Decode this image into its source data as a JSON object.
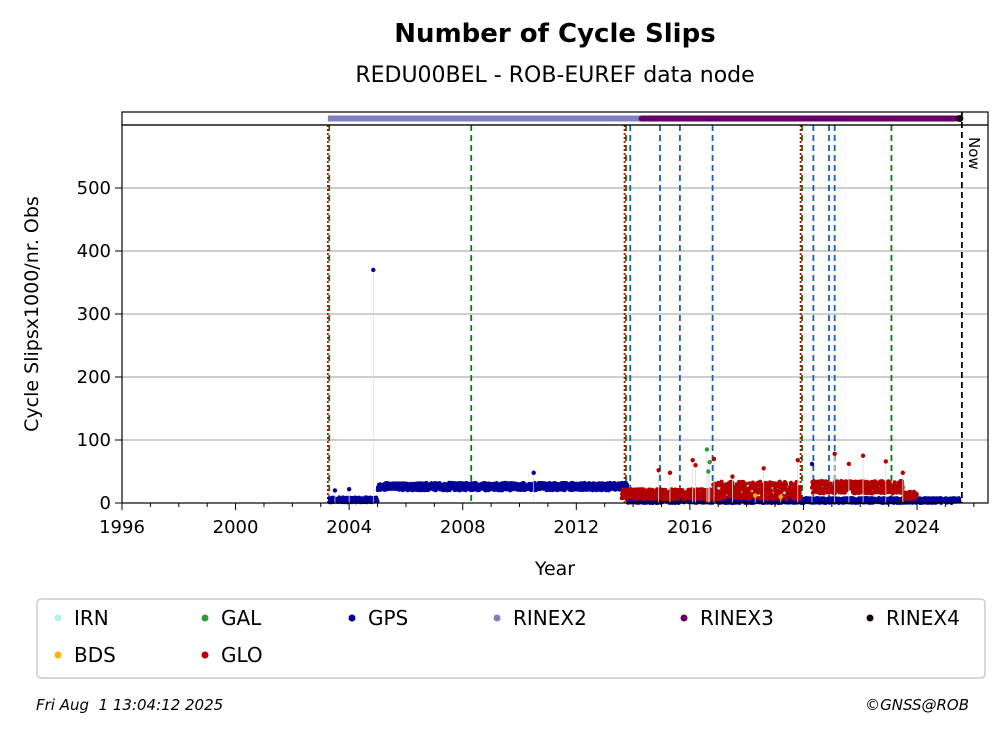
{
  "chart_data": {
    "type": "scatter",
    "title": "Number of Cycle Slips",
    "subtitle": "REDU00BEL - ROB-EUREF data node",
    "xlabel": "Year",
    "ylabel": "Cycle Slipsx1000/nr. Obs",
    "xlim": [
      1996,
      2026.5
    ],
    "ylim": [
      0,
      600
    ],
    "x_ticks": [
      1996,
      2000,
      2004,
      2008,
      2012,
      2016,
      2020,
      2024
    ],
    "y_ticks": [
      0,
      100,
      200,
      300,
      400,
      500
    ],
    "grid": "horizontal",
    "now_label": "Now",
    "now_x": 2025.58,
    "rinex_bars": [
      {
        "name": "RINEX2",
        "from": 2003.25,
        "to": 2014.3,
        "color": "#8080c0"
      },
      {
        "name": "RINEX3",
        "from": 2014.3,
        "to": 2025.5,
        "color": "#660066"
      },
      {
        "name": "RINEX4",
        "from": 2025.5,
        "to": 2025.58,
        "color": "#1a0010"
      }
    ],
    "event_lines_red": [
      2003.25,
      2013.7,
      2019.9
    ],
    "event_lines_green": [
      2003.3,
      2008.3,
      2013.75,
      2019.95,
      2023.1
    ],
    "event_lines_blue": [
      2013.9,
      2014.95,
      2015.65,
      2016.8,
      2020.35,
      2020.9,
      2021.1
    ],
    "series": [
      {
        "name": "GPS",
        "color": "#000099",
        "segments": [
          {
            "from": 2003.3,
            "to": 2005.0,
            "base": 5,
            "spread": 4
          },
          {
            "from": 2005.0,
            "to": 2013.8,
            "base": 26,
            "spread": 6
          },
          {
            "from": 2013.8,
            "to": 2025.5,
            "base": 4,
            "spread": 4
          }
        ],
        "outliers": [
          [
            2004.85,
            370
          ],
          [
            2010.5,
            48
          ],
          [
            2020.3,
            62
          ],
          [
            2003.5,
            20
          ],
          [
            2004.0,
            22
          ]
        ]
      },
      {
        "name": "GLO",
        "color": "#b30000",
        "segments": [
          {
            "from": 2013.6,
            "to": 2016.8,
            "base": 14,
            "spread": 8
          },
          {
            "from": 2016.8,
            "to": 2019.9,
            "base": 20,
            "spread": 14
          },
          {
            "from": 2020.3,
            "to": 2023.5,
            "base": 25,
            "spread": 10
          },
          {
            "from": 2023.5,
            "to": 2024.0,
            "base": 12,
            "spread": 6
          }
        ],
        "outliers": [
          [
            2014.9,
            52
          ],
          [
            2016.1,
            68
          ],
          [
            2016.2,
            60
          ],
          [
            2016.85,
            70
          ],
          [
            2017.5,
            42
          ],
          [
            2018.6,
            55
          ],
          [
            2019.8,
            68
          ],
          [
            2021.1,
            78
          ],
          [
            2021.6,
            62
          ],
          [
            2022.1,
            75
          ],
          [
            2022.9,
            66
          ],
          [
            2023.5,
            48
          ],
          [
            2015.3,
            48
          ]
        ]
      },
      {
        "name": "GAL",
        "color": "#339933",
        "segments": [],
        "outliers": [
          [
            2016.6,
            85
          ],
          [
            2016.7,
            65
          ],
          [
            2016.65,
            50
          ]
        ]
      },
      {
        "name": "BDS",
        "color": "#ffb300",
        "segments": [],
        "outliers": [
          [
            2018.3,
            12
          ],
          [
            2019.2,
            10
          ]
        ]
      },
      {
        "name": "IRN",
        "color": "#b3f0f0",
        "segments": [],
        "outliers": []
      }
    ]
  },
  "legend": {
    "items": [
      {
        "label": "IRN",
        "color": "#b3f0f0"
      },
      {
        "label": "GAL",
        "color": "#339933"
      },
      {
        "label": "GPS",
        "color": "#000099"
      },
      {
        "label": "RINEX2",
        "color": "#8080c0"
      },
      {
        "label": "RINEX3",
        "color": "#660066"
      },
      {
        "label": "RINEX4",
        "color": "#1a0010"
      },
      {
        "label": "BDS",
        "color": "#ffb300"
      },
      {
        "label": "GLO",
        "color": "#b30000"
      }
    ]
  },
  "footer": {
    "timestamp": "Fri Aug  1 13:04:12 2025",
    "credit": "©GNSS@ROB"
  }
}
